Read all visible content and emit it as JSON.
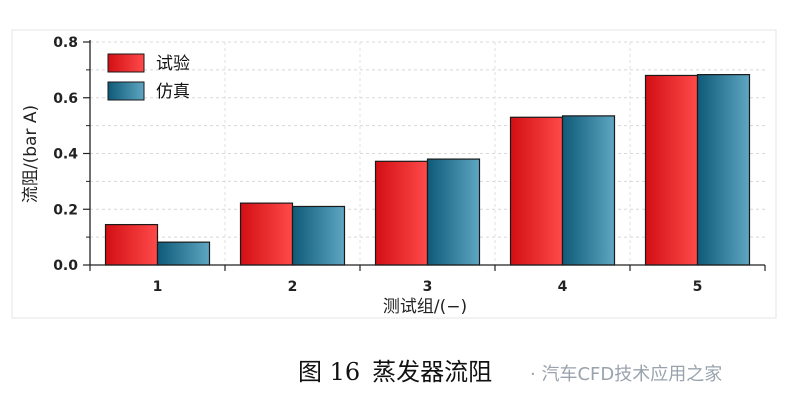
{
  "chart_data": {
    "type": "bar",
    "categories": [
      "1",
      "2",
      "3",
      "4",
      "5"
    ],
    "series": [
      {
        "name": "试验",
        "values": [
          0.145,
          0.222,
          0.372,
          0.53,
          0.68
        ]
      },
      {
        "name": "仿真",
        "values": [
          0.082,
          0.21,
          0.38,
          0.535,
          0.683
        ]
      }
    ],
    "xlabel": "测试组/(−)",
    "ylabel": "流阻/(bar A)",
    "ylim": [
      0,
      0.8
    ],
    "yticks": [
      "0.0",
      "0.2",
      "0.4",
      "0.6",
      "0.8"
    ],
    "grid": true,
    "legend": "top-left"
  },
  "colors": {
    "series": [
      {
        "light": "#ff4a4a",
        "dark": "#d20f14"
      },
      {
        "light": "#5ea6c2",
        "dark": "#0e5a78"
      }
    ]
  },
  "caption": {
    "figure_number": "图 16",
    "title": "蒸发器流阻"
  },
  "watermark": {
    "text": "· 汽车CFD技术应用之家"
  }
}
